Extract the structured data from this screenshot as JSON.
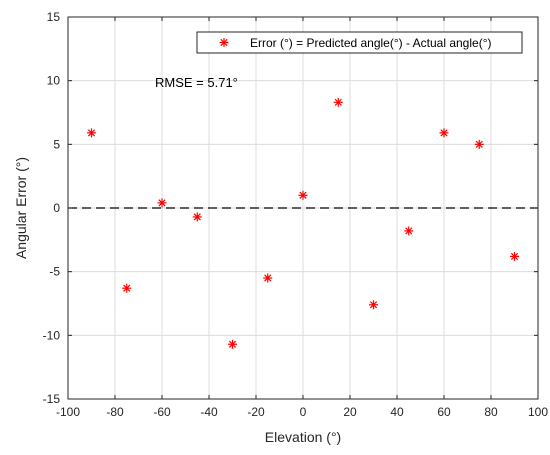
{
  "chart_data": {
    "type": "scatter",
    "xlabel": "Elevation (°)",
    "ylabel": "Angular Error (°)",
    "xlim": [
      -100,
      100
    ],
    "ylim": [
      -15,
      15
    ],
    "xticks": [
      -100,
      -80,
      -60,
      -40,
      -20,
      0,
      20,
      40,
      60,
      80,
      100
    ],
    "yticks": [
      -15,
      -10,
      -5,
      0,
      5,
      10,
      15
    ],
    "xtick_labels": [
      "-100",
      "-80",
      "-60",
      "-40",
      "-20",
      "0",
      "20",
      "40",
      "60",
      "80",
      "100"
    ],
    "ytick_labels": [
      "-15",
      "-10",
      "-5",
      "0",
      "5",
      "10",
      "15"
    ],
    "grid": true,
    "legend_position": "top-right",
    "series": [
      {
        "name": "Error (°) = Predicted angle(°) - Actual angle(°)",
        "marker": "asterisk",
        "color": "#ff0000",
        "x": [
          -90,
          -75,
          -60,
          -45,
          -30,
          -15,
          0,
          15,
          30,
          45,
          60,
          75,
          90
        ],
        "y": [
          5.9,
          -6.3,
          0.4,
          -0.7,
          -10.7,
          -5.5,
          1.0,
          8.3,
          -7.6,
          -1.8,
          5.9,
          5.0,
          -3.8
        ]
      }
    ],
    "reference_line": {
      "y": 0,
      "style": "dashed",
      "color": "#000000"
    },
    "annotation": "RMSE = 5.71°"
  }
}
